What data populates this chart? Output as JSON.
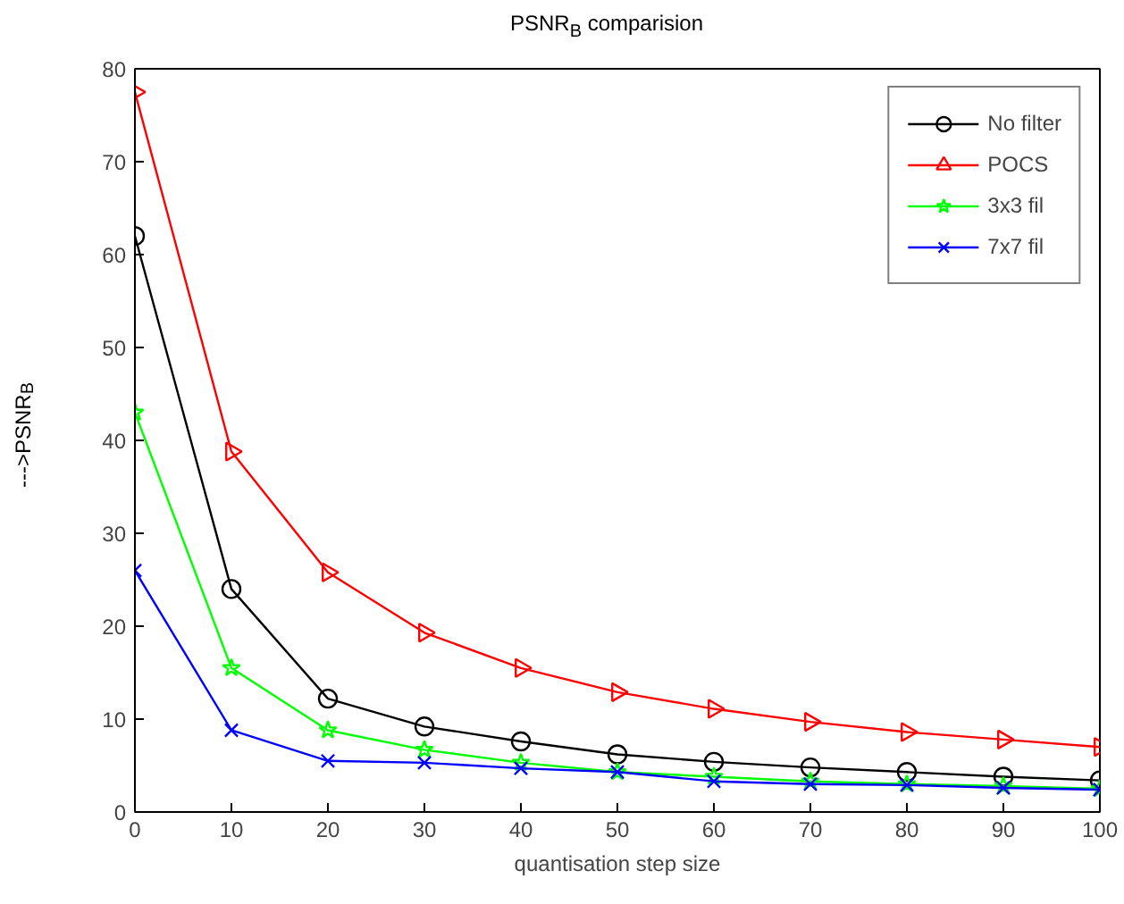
{
  "chart_data": {
    "type": "line",
    "title": "PSNR$_{B}$ comparision",
    "xlabel": "quantisation step size",
    "ylabel": "--->PSNR$_{B}$",
    "x": [
      0,
      10,
      20,
      30,
      40,
      50,
      60,
      70,
      80,
      90,
      100
    ],
    "series": [
      {
        "name": "No filter",
        "color": "#000000",
        "marker": "circle",
        "values": [
          62,
          24,
          12.2,
          9.2,
          7.6,
          6.2,
          5.4,
          4.8,
          4.3,
          3.8,
          3.4
        ]
      },
      {
        "name": "POCS",
        "color": "#ff0000",
        "marker": "triangle",
        "values": [
          77.5,
          38.8,
          25.8,
          19.3,
          15.5,
          12.9,
          11.1,
          9.7,
          8.6,
          7.8,
          7.0
        ]
      },
      {
        "name": "3x3 fil",
        "color": "#00ff00",
        "marker": "star",
        "values": [
          43,
          15.5,
          8.8,
          6.7,
          5.3,
          4.3,
          3.8,
          3.3,
          3.0,
          2.8,
          2.5
        ]
      },
      {
        "name": "7x7 fil",
        "color": "#0000ff",
        "marker": "cross",
        "values": [
          26,
          8.8,
          5.5,
          5.3,
          4.7,
          4.3,
          3.3,
          3.0,
          2.9,
          2.6,
          2.4
        ]
      }
    ],
    "xlim": [
      0,
      100
    ],
    "xticks": [
      0,
      10,
      20,
      30,
      40,
      50,
      60,
      70,
      80,
      90,
      100
    ],
    "ylim": [
      0,
      80
    ],
    "yticks": [
      0,
      10,
      20,
      30,
      40,
      50,
      60,
      70,
      80
    ],
    "grid": false,
    "legend": "top right",
    "line_style": "solid"
  }
}
